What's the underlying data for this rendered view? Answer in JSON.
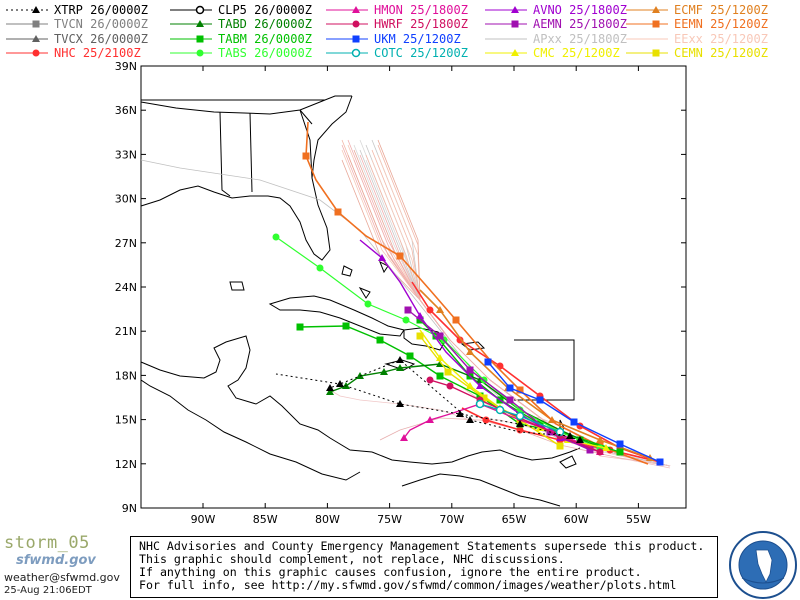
{
  "legend": [
    {
      "label": "XTRP 26/0000Z",
      "color": "#000000",
      "marker": "triangle",
      "dash": "2,3"
    },
    {
      "label": "TVCN 26/0000Z",
      "color": "#808080",
      "marker": "square"
    },
    {
      "label": "TVCX 26/0000Z",
      "color": "#606060",
      "marker": "triangle"
    },
    {
      "label": "NHC 25/2100Z",
      "color": "#ff3030",
      "marker": "circle"
    },
    {
      "label": "CLP5 26/0000Z",
      "color": "#000000",
      "marker": "circle-open"
    },
    {
      "label": "TABD 26/0000Z",
      "color": "#008000",
      "marker": "triangle"
    },
    {
      "label": "TABM 26/0000Z",
      "color": "#00c000",
      "marker": "square"
    },
    {
      "label": "TABS 26/0000Z",
      "color": "#30ff30",
      "marker": "circle"
    },
    {
      "label": "HMON 25/1800Z",
      "color": "#e0109a",
      "marker": "triangle"
    },
    {
      "label": "HWRF 25/1800Z",
      "color": "#d01060",
      "marker": "circle"
    },
    {
      "label": "UKM 25/1200Z",
      "color": "#1040ff",
      "marker": "square"
    },
    {
      "label": "COTC 25/1200Z",
      "color": "#00b0b0",
      "marker": "circle-open"
    },
    {
      "label": "AVNO 25/1800Z",
      "color": "#a000d0",
      "marker": "triangle"
    },
    {
      "label": "AEMN 25/1800Z",
      "color": "#a010b0",
      "marker": "square"
    },
    {
      "label": "APxx 25/1800Z",
      "color": "#c0c0c0",
      "marker": "line"
    },
    {
      "label": "CMC 25/1200Z",
      "color": "#f0f000",
      "marker": "triangle"
    },
    {
      "label": "ECMF 25/1200Z",
      "color": "#e08020",
      "marker": "triangle"
    },
    {
      "label": "EEMN 25/1200Z",
      "color": "#f07020",
      "marker": "square"
    },
    {
      "label": "EExx 25/1200Z",
      "color": "#f8c8b8",
      "marker": "line"
    },
    {
      "label": "CEMN 25/1200Z",
      "color": "#e8e000",
      "marker": "square"
    }
  ],
  "map": {
    "lat_labels": [
      "39N",
      "36N",
      "33N",
      "30N",
      "27N",
      "24N",
      "21N",
      "18N",
      "15N",
      "12N",
      "9N"
    ],
    "lon_labels": [
      "90W",
      "85W",
      "80W",
      "75W",
      "70W",
      "65W",
      "60W",
      "55W"
    ]
  },
  "footer": {
    "storm": "storm_05",
    "logo_text": "sfwmd.gov",
    "email": "weather@sfwmd.gov",
    "timestamp": "25-Aug 21:06EDT",
    "disclaimer": [
      "NHC Advisories and County Emergency Management Statements supersede this product.",
      "This graphic should complement, not replace, NHC discussions.",
      "If anything on this graphic causes confusion, ignore the entire product.",
      "For full info, see  http://my.sfwmd.gov/sfwmd/common/images/weather/plots.html"
    ],
    "seal_text": "SOUTH FLORIDA WATER MANAGEMENT DISTRICT"
  }
}
